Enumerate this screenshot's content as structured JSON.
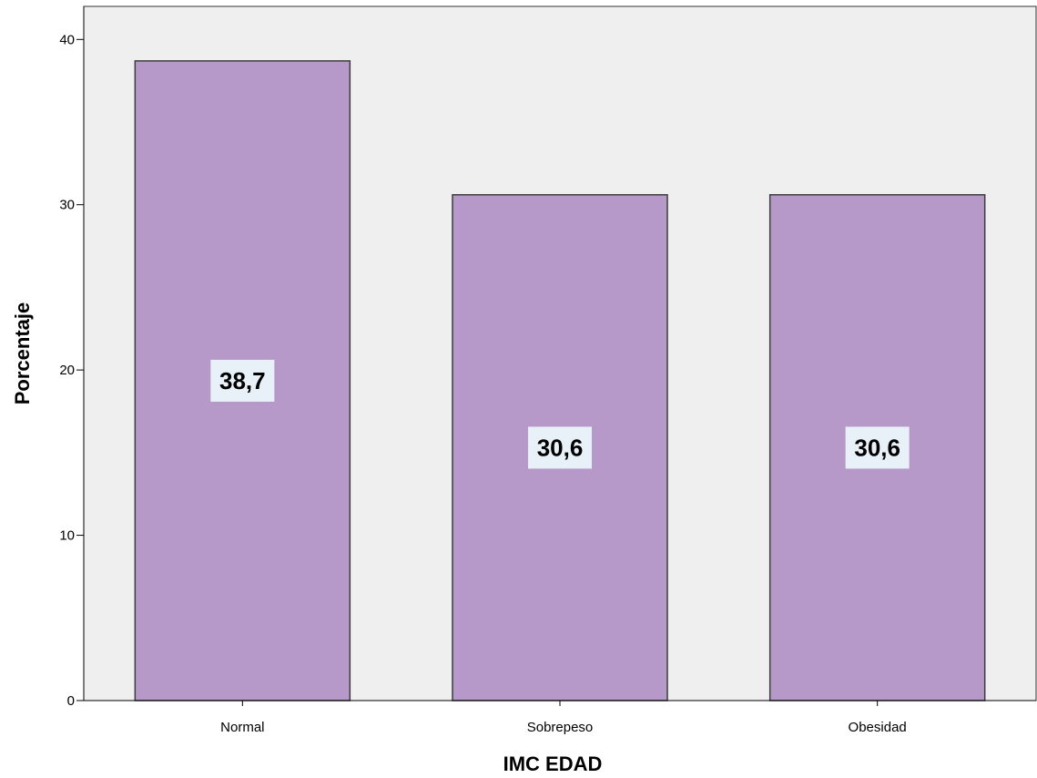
{
  "chart_data": {
    "type": "bar",
    "categories": [
      "Normal",
      "Sobrepeso",
      "Obesidad"
    ],
    "values": [
      38.7,
      30.6,
      30.6
    ],
    "value_labels": [
      "38,7",
      "30,6",
      "30,6"
    ],
    "xlabel": "IMC EDAD",
    "ylabel": "Porcentaje",
    "ylim": [
      0,
      42
    ],
    "yticks": [
      0,
      10,
      20,
      30,
      40
    ],
    "ytick_labels": [
      "0",
      "10",
      "20",
      "30",
      "40"
    ],
    "grid": false,
    "legend": "none",
    "colors": {
      "plot_background": "#efefef",
      "bar_fill": "#b799c9",
      "bar_stroke": "#3c3c3c",
      "label_background": "#e8f0f8"
    }
  }
}
